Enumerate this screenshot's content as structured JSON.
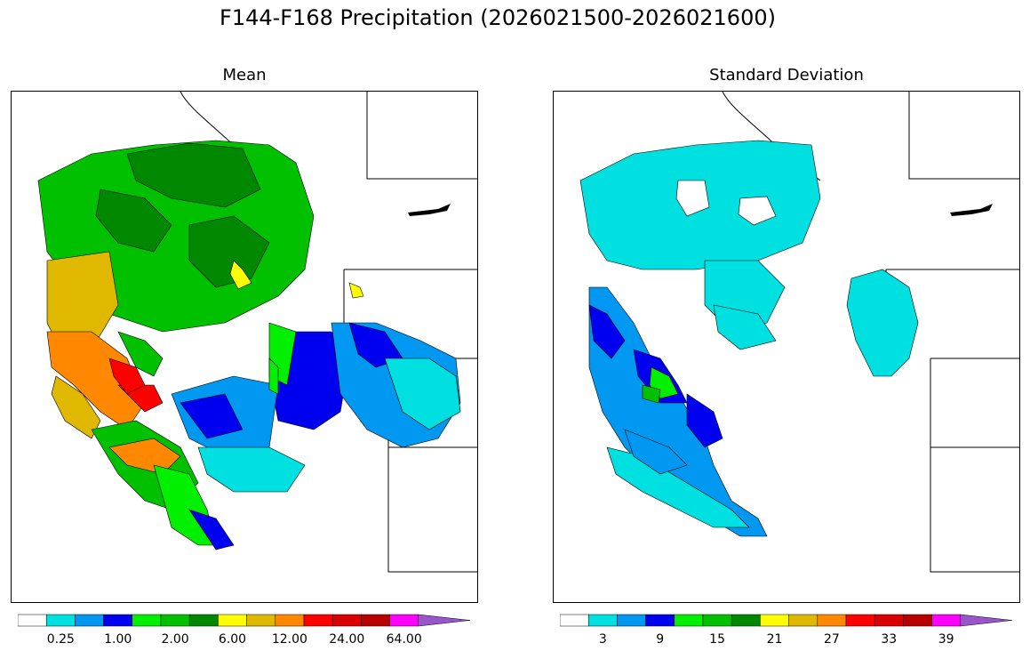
{
  "figure": {
    "title": "F144-F168 Precipitation (2026021500-2026021600)"
  },
  "panels": {
    "mean": {
      "title": "Mean"
    },
    "std": {
      "title": "Standard Deviation"
    }
  },
  "colors": {
    "scale": [
      "#ffffff",
      "#00e0e0",
      "#0098f0",
      "#0000f0",
      "#00f000",
      "#00c000",
      "#008800",
      "#ffff00",
      "#e0b800",
      "#ff8800",
      "#ff0000",
      "#d80000",
      "#b80000",
      "#ff00ff",
      "#9955cc"
    ]
  },
  "colorbars": {
    "mean": {
      "tick_labels": [
        "0.25",
        "1.00",
        "2.00",
        "6.00",
        "12.00",
        "24.00",
        "64.00"
      ]
    },
    "std": {
      "tick_labels": [
        "3",
        "9",
        "15",
        "21",
        "27",
        "33",
        "39"
      ]
    }
  }
}
